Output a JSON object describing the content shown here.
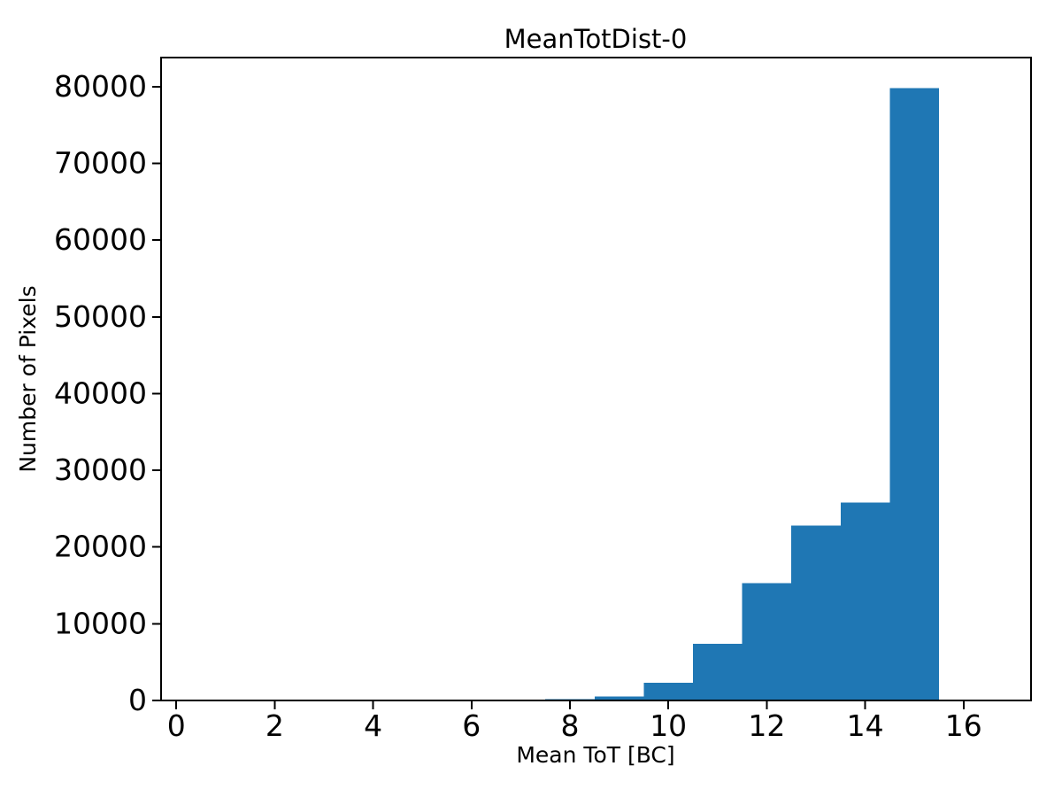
{
  "figure": {
    "background": "#ffffff"
  },
  "chart_data": {
    "type": "bar",
    "title": "MeanTotDist-0",
    "xlabel": "Mean ToT [BC]",
    "ylabel": "Number of Pixels",
    "bin_edges": [
      7.5,
      8.5,
      9.5,
      10.5,
      11.5,
      12.5,
      13.5,
      14.5,
      15.5
    ],
    "bin_centers": [
      8,
      9,
      10,
      11,
      12,
      13,
      14,
      15
    ],
    "values": [
      200,
      500,
      2300,
      7400,
      15300,
      22800,
      25800,
      79800
    ],
    "xticks": [
      0,
      2,
      4,
      6,
      8,
      10,
      12,
      14,
      16
    ],
    "yticks": [
      0,
      10000,
      20000,
      30000,
      40000,
      50000,
      60000,
      70000,
      80000
    ],
    "xlim": [
      -0.31,
      17.37
    ],
    "ylim": [
      0,
      83800
    ],
    "bar_color": "#1f77b4",
    "axis_color": "#000000",
    "grid": false,
    "legend": null
  }
}
